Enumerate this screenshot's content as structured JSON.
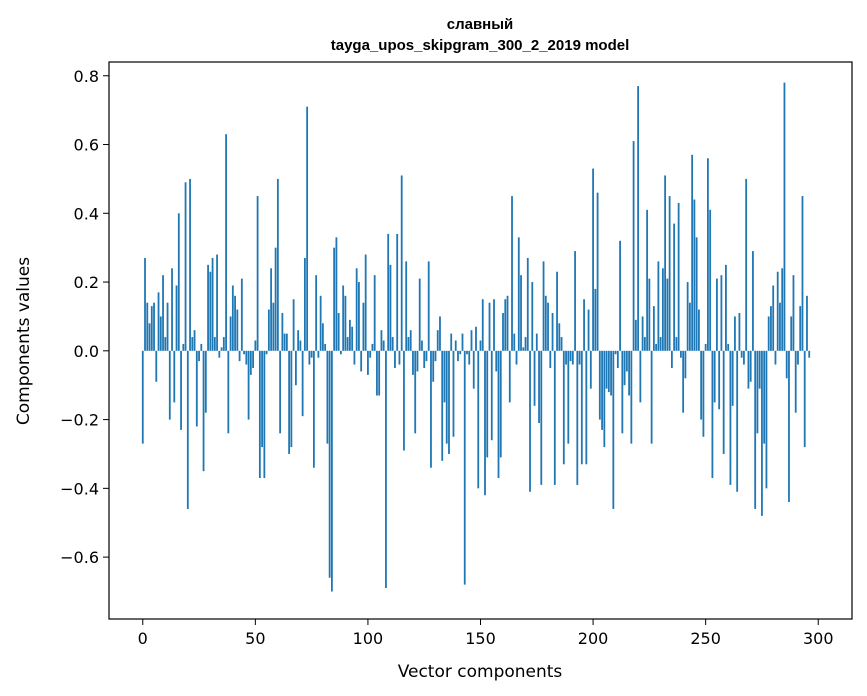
{
  "chart_data": {
    "type": "bar",
    "title": "славный",
    "subtitle": "tayga_upos_skipgram_300_2_2019 model",
    "xlabel": "Vector components",
    "ylabel": "Components values",
    "xlim": [
      -15,
      315
    ],
    "ylim": [
      -0.78,
      0.84
    ],
    "x_ticks": [
      0,
      50,
      100,
      150,
      200,
      250,
      300
    ],
    "x_tick_labels": [
      "0",
      "50",
      "100",
      "150",
      "200",
      "250",
      "300"
    ],
    "y_ticks": [
      -0.6,
      -0.4,
      -0.2,
      0.0,
      0.2,
      0.4,
      0.6,
      0.8
    ],
    "y_tick_labels": [
      "−0.6",
      "−0.4",
      "−0.2",
      "0.0",
      "0.2",
      "0.4",
      "0.6",
      "0.8"
    ],
    "grid": false,
    "bar_color": "#1f77b4",
    "values": [
      -0.27,
      0.27,
      0.14,
      0.08,
      0.13,
      0.14,
      -0.09,
      0.17,
      0.1,
      0.22,
      0.04,
      0.14,
      -0.2,
      0.24,
      -0.15,
      0.19,
      0.4,
      -0.23,
      0.02,
      0.49,
      -0.46,
      0.5,
      0.04,
      0.06,
      -0.22,
      -0.03,
      0.02,
      -0.35,
      -0.18,
      0.25,
      0.23,
      0.27,
      0.04,
      0.28,
      -0.02,
      0.01,
      0.04,
      0.63,
      -0.24,
      0.1,
      0.19,
      0.16,
      0.12,
      -0.03,
      0.21,
      -0.01,
      -0.04,
      -0.2,
      -0.07,
      -0.05,
      0.03,
      0.45,
      -0.37,
      -0.28,
      -0.37,
      -0.01,
      0.12,
      0.24,
      0.14,
      0.3,
      0.5,
      -0.24,
      0.11,
      0.05,
      0.05,
      -0.3,
      -0.28,
      0.15,
      -0.1,
      0.06,
      0.03,
      -0.19,
      0.27,
      0.71,
      -0.04,
      -0.02,
      -0.34,
      0.22,
      -0.02,
      0.16,
      0.08,
      0.02,
      -0.27,
      -0.66,
      -0.7,
      0.3,
      0.33,
      0.11,
      -0.01,
      0.19,
      0.16,
      0.04,
      0.09,
      0.07,
      -0.04,
      0.24,
      0.2,
      -0.06,
      0.14,
      0.28,
      -0.07,
      -0.02,
      0.02,
      0.22,
      -0.13,
      -0.13,
      0.06,
      0.03,
      -0.69,
      0.34,
      0.25,
      0.04,
      -0.05,
      0.34,
      -0.04,
      0.51,
      -0.29,
      0.26,
      0.04,
      0.06,
      -0.07,
      -0.24,
      -0.06,
      0.21,
      0.03,
      -0.05,
      -0.03,
      0.26,
      -0.34,
      -0.09,
      -0.03,
      0.06,
      0.1,
      -0.32,
      -0.15,
      -0.27,
      -0.3,
      0.05,
      -0.25,
      0.03,
      -0.03,
      -0.01,
      0.05,
      -0.68,
      -0.01,
      -0.04,
      0.06,
      -0.11,
      0.07,
      -0.4,
      0.03,
      0.15,
      -0.42,
      -0.31,
      0.14,
      -0.26,
      0.15,
      -0.06,
      -0.37,
      -0.31,
      0.11,
      0.15,
      0.16,
      -0.15,
      0.45,
      0.05,
      -0.04,
      0.33,
      0.22,
      0.01,
      0.04,
      0.27,
      -0.41,
      0.2,
      -0.16,
      0.05,
      -0.21,
      -0.39,
      0.26,
      0.16,
      0.14,
      -0.05,
      0.11,
      -0.39,
      0.23,
      0.08,
      0.04,
      -0.33,
      -0.04,
      -0.27,
      -0.03,
      -0.04,
      0.29,
      -0.39,
      -0.04,
      -0.33,
      0.15,
      -0.33,
      0.12,
      -0.11,
      0.53,
      0.18,
      0.46,
      -0.2,
      -0.23,
      -0.28,
      -0.11,
      -0.12,
      -0.13,
      -0.46,
      -0.01,
      -0.05,
      0.32,
      -0.24,
      -0.1,
      -0.06,
      -0.13,
      -0.27,
      0.61,
      0.09,
      0.77,
      -0.15,
      0.1,
      0.04,
      0.41,
      0.21,
      -0.27,
      0.13,
      0.02,
      0.26,
      0.04,
      0.24,
      0.51,
      0.21,
      0.45,
      -0.05,
      0.37,
      0.04,
      0.43,
      -0.02,
      -0.18,
      -0.08,
      0.2,
      0.14,
      0.57,
      0.44,
      0.33,
      0.12,
      -0.2,
      -0.25,
      0.02,
      0.56,
      0.41,
      -0.37,
      -0.15,
      0.21,
      -0.17,
      0.22,
      -0.3,
      0.25,
      0.02,
      -0.39,
      -0.16,
      0.1,
      -0.41,
      0.11,
      -0.02,
      -0.04,
      0.5,
      -0.11,
      -0.09,
      0.29,
      -0.46,
      -0.24,
      -0.11,
      -0.48,
      -0.27,
      -0.4,
      0.1,
      0.13,
      0.19,
      -0.04,
      0.23,
      0.14,
      0.24,
      0.78,
      -0.08,
      -0.44,
      0.1,
      0.22,
      -0.18,
      -0.04,
      0.13,
      0.45,
      -0.28,
      0.16,
      -0.02
    ]
  }
}
